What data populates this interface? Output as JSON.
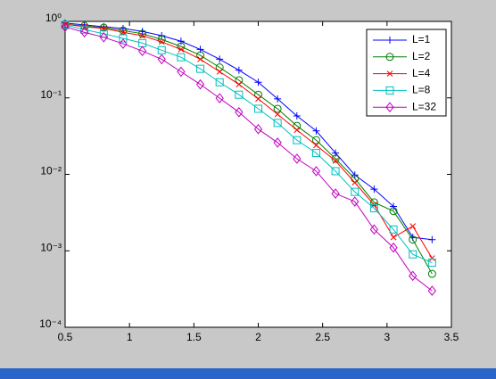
{
  "chart_data": {
    "type": "line",
    "log_y": true,
    "legend": "top-right",
    "x": [
      0.5,
      0.65,
      0.8,
      0.95,
      1.1,
      1.25,
      1.4,
      1.55,
      1.7,
      1.85,
      2.0,
      2.15,
      2.3,
      2.45,
      2.6,
      2.75,
      2.9,
      3.05,
      3.2,
      3.35
    ],
    "series": [
      {
        "name": "L=1",
        "color": "#0000ff",
        "marker": "plus",
        "values": [
          0.95,
          0.9,
          0.85,
          0.81,
          0.74,
          0.65,
          0.55,
          0.43,
          0.32,
          0.23,
          0.16,
          0.097,
          0.058,
          0.037,
          0.019,
          0.0098,
          0.0064,
          0.0038,
          0.0015,
          0.0014
        ]
      },
      {
        "name": "L=2",
        "color": "#007f00",
        "marker": "circle",
        "values": [
          0.92,
          0.87,
          0.83,
          0.76,
          0.69,
          0.58,
          0.47,
          0.36,
          0.25,
          0.17,
          0.11,
          0.072,
          0.043,
          0.028,
          0.016,
          0.0088,
          0.0043,
          0.0033,
          0.0014,
          0.0005
        ]
      },
      {
        "name": "L=4",
        "color": "#ff0000",
        "marker": "x",
        "values": [
          0.92,
          0.85,
          0.81,
          0.72,
          0.65,
          0.54,
          0.43,
          0.32,
          0.22,
          0.15,
          0.097,
          0.061,
          0.038,
          0.024,
          0.015,
          0.0078,
          0.004,
          0.0015,
          0.0021,
          0.0008
        ]
      },
      {
        "name": "L=8",
        "color": "#00bfbf",
        "marker": "square",
        "values": [
          0.9,
          0.78,
          0.69,
          0.6,
          0.52,
          0.42,
          0.34,
          0.24,
          0.16,
          0.11,
          0.072,
          0.047,
          0.028,
          0.019,
          0.011,
          0.0059,
          0.0036,
          0.0019,
          0.0009,
          0.0007
        ]
      },
      {
        "name": "L=32",
        "color": "#bf00bf",
        "marker": "diamond",
        "values": [
          0.85,
          0.72,
          0.62,
          0.51,
          0.41,
          0.32,
          0.22,
          0.15,
          0.099,
          0.065,
          0.039,
          0.026,
          0.016,
          0.011,
          0.0056,
          0.0044,
          0.0019,
          0.0011,
          0.00047,
          0.0003
        ]
      }
    ],
    "xlim": [
      0.5,
      3.5
    ],
    "xticks": [
      0.5,
      1,
      1.5,
      2,
      2.5,
      3,
      3.5
    ],
    "ylim": [
      0.0001,
      1
    ],
    "yticks": [
      {
        "value": 1,
        "label": "10⁰"
      },
      {
        "value": 0.1,
        "label": "10⁻¹"
      },
      {
        "value": 0.01,
        "label": "10⁻²"
      },
      {
        "value": 0.001,
        "label": "10⁻³"
      },
      {
        "value": 0.0001,
        "label": "10⁻⁴"
      }
    ]
  }
}
